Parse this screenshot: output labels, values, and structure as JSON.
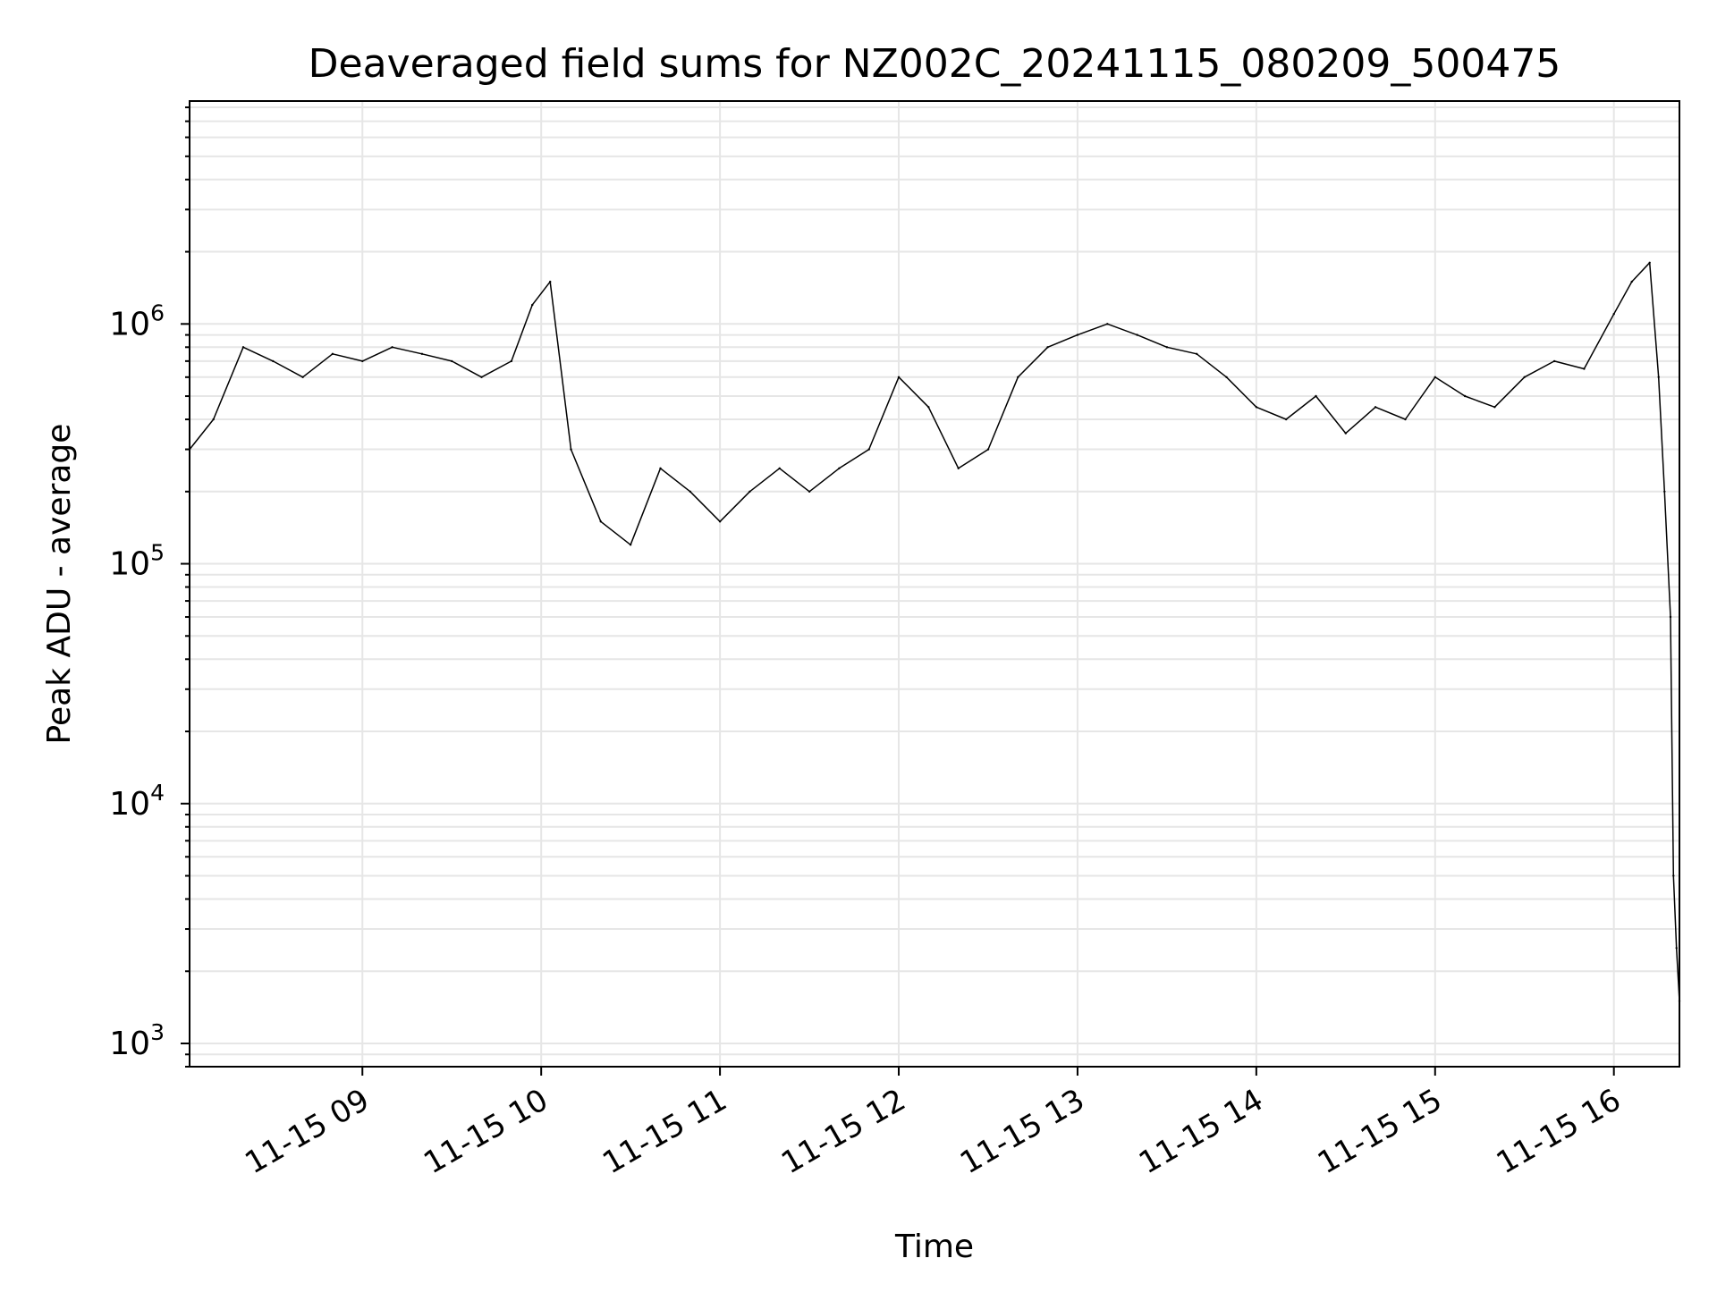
{
  "chart_data": {
    "type": "line",
    "title": "Deaveraged field sums for NZ002C_20241115_080209_500475",
    "xlabel": "Time",
    "ylabel": "Peak ADU - average",
    "y_scale": "log",
    "ylim": [
      800,
      8500000
    ],
    "xlim": [
      "2024-11-15 08:02",
      "2024-11-15 16:22"
    ],
    "x_ticks": [
      {
        "value": "2024-11-15 09:00",
        "label": "11-15 09"
      },
      {
        "value": "2024-11-15 10:00",
        "label": "11-15 10"
      },
      {
        "value": "2024-11-15 11:00",
        "label": "11-15 11"
      },
      {
        "value": "2024-11-15 12:00",
        "label": "11-15 12"
      },
      {
        "value": "2024-11-15 13:00",
        "label": "11-15 13"
      },
      {
        "value": "2024-11-15 14:00",
        "label": "11-15 14"
      },
      {
        "value": "2024-11-15 15:00",
        "label": "11-15 15"
      },
      {
        "value": "2024-11-15 16:00",
        "label": "11-15 16"
      }
    ],
    "y_ticks": [
      {
        "value": 1000,
        "base": "10",
        "exp": "3"
      },
      {
        "value": 10000,
        "base": "10",
        "exp": "4"
      },
      {
        "value": 100000,
        "base": "10",
        "exp": "5"
      },
      {
        "value": 1000000,
        "base": "10",
        "exp": "6"
      }
    ],
    "grid": true,
    "line_color": "#000000",
    "grid_color": "#e6e6e6",
    "series": [
      {
        "x": [
          "2024-11-15 08:02",
          "2024-11-15 08:10",
          "2024-11-15 08:20",
          "2024-11-15 08:30",
          "2024-11-15 08:40",
          "2024-11-15 08:50",
          "2024-11-15 09:00",
          "2024-11-15 09:10",
          "2024-11-15 09:20",
          "2024-11-15 09:30",
          "2024-11-15 09:40",
          "2024-11-15 09:50",
          "2024-11-15 09:57",
          "2024-11-15 10:03",
          "2024-11-15 10:10",
          "2024-11-15 10:20",
          "2024-11-15 10:30",
          "2024-11-15 10:40",
          "2024-11-15 10:50",
          "2024-11-15 11:00",
          "2024-11-15 11:10",
          "2024-11-15 11:20",
          "2024-11-15 11:30",
          "2024-11-15 11:40",
          "2024-11-15 11:50",
          "2024-11-15 12:00",
          "2024-11-15 12:10",
          "2024-11-15 12:20",
          "2024-11-15 12:30",
          "2024-11-15 12:40",
          "2024-11-15 12:50",
          "2024-11-15 13:00",
          "2024-11-15 13:10",
          "2024-11-15 13:20",
          "2024-11-15 13:30",
          "2024-11-15 13:40",
          "2024-11-15 13:50",
          "2024-11-15 14:00",
          "2024-11-15 14:10",
          "2024-11-15 14:20",
          "2024-11-15 14:30",
          "2024-11-15 14:40",
          "2024-11-15 14:50",
          "2024-11-15 15:00",
          "2024-11-15 15:10",
          "2024-11-15 15:20",
          "2024-11-15 15:30",
          "2024-11-15 15:40",
          "2024-11-15 15:50",
          "2024-11-15 16:00",
          "2024-11-15 16:06",
          "2024-11-15 16:12",
          "2024-11-15 16:15",
          "2024-11-15 16:17",
          "2024-11-15 16:19",
          "2024-11-15 16:20",
          "2024-11-15 16:21",
          "2024-11-15 16:22"
        ],
        "y": [
          300000,
          400000,
          800000,
          700000,
          600000,
          750000,
          700000,
          800000,
          750000,
          700000,
          600000,
          700000,
          1200000,
          1500000,
          300000,
          150000,
          120000,
          250000,
          200000,
          150000,
          200000,
          250000,
          200000,
          250000,
          300000,
          600000,
          450000,
          250000,
          300000,
          600000,
          800000,
          900000,
          1000000,
          900000,
          800000,
          750000,
          600000,
          450000,
          400000,
          500000,
          350000,
          450000,
          400000,
          600000,
          500000,
          450000,
          600000,
          700000,
          650000,
          1100000,
          1500000,
          1800000,
          600000,
          200000,
          60000,
          5000,
          2500,
          1500
        ]
      }
    ]
  }
}
